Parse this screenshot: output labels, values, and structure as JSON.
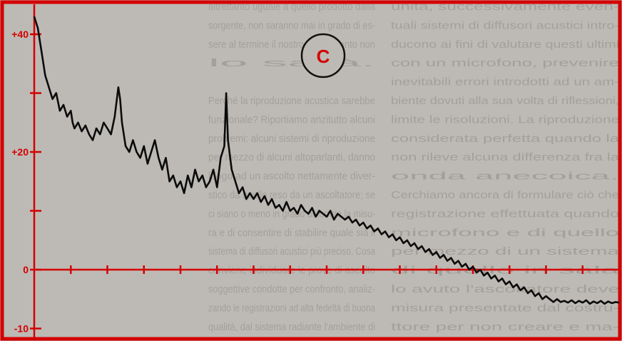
{
  "colors": {
    "paper": "#bdbab5",
    "print_text": "#8f8a84",
    "frame": "#d40000",
    "axis": "#d40000",
    "trace": "#0b0b0b",
    "panel_circle": "#111111",
    "panel_letter_color": "#d40000"
  },
  "panel_label": "C",
  "background_text": {
    "left_column": [
      "altrettanto uguale a quello prodotto dalla",
      "sorgente, non saranno mai in grado di es-",
      "sere al termine il nostro esperimento non",
      "lo sarà.",
      "",
      "Perché la riproduzione acustica sarebbe",
      "funzionale? Riportiamo anzitutto alcuni",
      "problemi: alcuni sistemi di riproduzione",
      "per mezzo di alcuni altoparlanti, danno",
      "luogo ad un ascolto nettamente diver-",
      "stico da quello reso da un ascoltatore; se",
      "ci siano o meno in grado di fornire la misu-",
      "ra e di consentire di stabilire quale sia il",
      "sistema di diffusori acustici più preciso. Cosa",
      "conviene individuare le prove di ascolto",
      "soggettive condotte per confronto, analiz-",
      "zando le registrazioni ad alta fedeltà di buona",
      "qualità, dal sistema radiante l'ambiente di"
    ],
    "right_column": [
      "unità, successivamente even-",
      "tuali sistemi di diffusori acustici intro-",
      "ducono ai fini di valutare questi ultimi",
      "con un microfono, prevenire",
      "inevitabili errori introdotti ad un am-",
      "biente dovuti alla sua volta di riflessioni,",
      "limite le risoluzioni. La riproduzione",
      "considerata perfetta quando la",
      "non rileve alcuna differenza fra la",
      "onda anecoica.",
      "Cerchiamo ancora di formulare ciò che",
      "registrazione effettuata quando",
      "microfono e di quello",
      "per mezzo di un sistema",
      "di quello in sala",
      "lo avuto l'ascoltatore deve",
      "misura presentate dal costru-",
      "ttore per non creare e ma-"
    ]
  },
  "chart_data": {
    "type": "line",
    "title": "",
    "xlabel": "",
    "ylabel": "",
    "ylim": [
      -8,
      42
    ],
    "yticks": [
      {
        "value": 40,
        "label": "+40"
      },
      {
        "value": 30,
        "label": ""
      },
      {
        "value": 20,
        "label": "+20"
      },
      {
        "value": 10,
        "label": ""
      },
      {
        "value": 0,
        "label": "0"
      },
      {
        "value": -10,
        "label": "-10"
      }
    ],
    "xticks": [
      1,
      2,
      3,
      4,
      5,
      6,
      7,
      8,
      9,
      10,
      11,
      12,
      13,
      14,
      15,
      16
    ],
    "xlim": [
      0,
      16
    ],
    "grid": false,
    "series": [
      {
        "values": [
          [
            0.0,
            43
          ],
          [
            0.1,
            41
          ],
          [
            0.2,
            37
          ],
          [
            0.3,
            33
          ],
          [
            0.4,
            31
          ],
          [
            0.5,
            29
          ],
          [
            0.6,
            30
          ],
          [
            0.7,
            27
          ],
          [
            0.8,
            28
          ],
          [
            0.9,
            26
          ],
          [
            1.0,
            27
          ],
          [
            1.05,
            25
          ],
          [
            1.1,
            24
          ],
          [
            1.2,
            25
          ],
          [
            1.3,
            23.5
          ],
          [
            1.4,
            24.5
          ],
          [
            1.5,
            23
          ],
          [
            1.6,
            22
          ],
          [
            1.7,
            24
          ],
          [
            1.8,
            23
          ],
          [
            1.9,
            25
          ],
          [
            2.0,
            24
          ],
          [
            2.1,
            23
          ],
          [
            2.2,
            26
          ],
          [
            2.3,
            31
          ],
          [
            2.35,
            29
          ],
          [
            2.4,
            25
          ],
          [
            2.5,
            21
          ],
          [
            2.6,
            20
          ],
          [
            2.7,
            22
          ],
          [
            2.8,
            20
          ],
          [
            2.9,
            19
          ],
          [
            3.0,
            21
          ],
          [
            3.1,
            18
          ],
          [
            3.2,
            20
          ],
          [
            3.3,
            22
          ],
          [
            3.4,
            19
          ],
          [
            3.5,
            17
          ],
          [
            3.6,
            19
          ],
          [
            3.7,
            15
          ],
          [
            3.8,
            16
          ],
          [
            3.9,
            14
          ],
          [
            4.0,
            15
          ],
          [
            4.1,
            13
          ],
          [
            4.2,
            16
          ],
          [
            4.3,
            14
          ],
          [
            4.4,
            17
          ],
          [
            4.5,
            15
          ],
          [
            4.6,
            16
          ],
          [
            4.7,
            14
          ],
          [
            4.8,
            15
          ],
          [
            4.9,
            17
          ],
          [
            5.0,
            14
          ],
          [
            5.1,
            19
          ],
          [
            5.2,
            21
          ],
          [
            5.25,
            30
          ],
          [
            5.3,
            22
          ],
          [
            5.4,
            17
          ],
          [
            5.5,
            15
          ],
          [
            5.6,
            13
          ],
          [
            5.7,
            14
          ],
          [
            5.8,
            12
          ],
          [
            5.9,
            13
          ],
          [
            6.0,
            12
          ],
          [
            6.1,
            13
          ],
          [
            6.2,
            11.5
          ],
          [
            6.3,
            12.5
          ],
          [
            6.4,
            11
          ],
          [
            6.5,
            12
          ],
          [
            6.6,
            10.5
          ],
          [
            6.7,
            11
          ],
          [
            6.8,
            10
          ],
          [
            6.9,
            11.5
          ],
          [
            7.0,
            10
          ],
          [
            7.1,
            10.5
          ],
          [
            7.2,
            9.5
          ],
          [
            7.3,
            11
          ],
          [
            7.4,
            10
          ],
          [
            7.5,
            9.5
          ],
          [
            7.6,
            10.5
          ],
          [
            7.7,
            9
          ],
          [
            7.8,
            10
          ],
          [
            7.9,
            9.5
          ],
          [
            8.0,
            9
          ],
          [
            8.1,
            10
          ],
          [
            8.2,
            8.5
          ],
          [
            8.3,
            9.5
          ],
          [
            8.4,
            9
          ],
          [
            8.5,
            8.5
          ],
          [
            8.6,
            9
          ],
          [
            8.7,
            8
          ],
          [
            8.8,
            8.5
          ],
          [
            8.9,
            7.5
          ],
          [
            9.0,
            8
          ],
          [
            9.1,
            7
          ],
          [
            9.2,
            7.5
          ],
          [
            9.3,
            6.5
          ],
          [
            9.4,
            7
          ],
          [
            9.5,
            6
          ],
          [
            9.6,
            6.5
          ],
          [
            9.7,
            5.5
          ],
          [
            9.8,
            6
          ],
          [
            9.9,
            5
          ],
          [
            10.0,
            5.5
          ],
          [
            10.1,
            4.5
          ],
          [
            10.2,
            5
          ],
          [
            10.3,
            4
          ],
          [
            10.4,
            4.5
          ],
          [
            10.5,
            3.5
          ],
          [
            10.6,
            4
          ],
          [
            10.7,
            3
          ],
          [
            10.8,
            3.5
          ],
          [
            10.9,
            2.5
          ],
          [
            11.0,
            3
          ],
          [
            11.1,
            2
          ],
          [
            11.2,
            2.5
          ],
          [
            11.3,
            1.5
          ],
          [
            11.4,
            2
          ],
          [
            11.5,
            1
          ],
          [
            11.6,
            1.5
          ],
          [
            11.7,
            0.5
          ],
          [
            11.8,
            1
          ],
          [
            11.9,
            0
          ],
          [
            12.0,
            0.5
          ],
          [
            12.1,
            -0.5
          ],
          [
            12.2,
            0
          ],
          [
            12.3,
            -1
          ],
          [
            12.4,
            -0.5
          ],
          [
            12.5,
            -1.5
          ],
          [
            12.6,
            -1
          ],
          [
            12.7,
            -2
          ],
          [
            12.8,
            -1.5
          ],
          [
            12.9,
            -2.5
          ],
          [
            13.0,
            -2
          ],
          [
            13.1,
            -3
          ],
          [
            13.2,
            -2.5
          ],
          [
            13.3,
            -3.5
          ],
          [
            13.4,
            -3
          ],
          [
            13.5,
            -4
          ],
          [
            13.6,
            -3.5
          ],
          [
            13.7,
            -4.5
          ],
          [
            13.8,
            -4
          ],
          [
            13.9,
            -5
          ],
          [
            14.0,
            -4.5
          ],
          [
            14.1,
            -5
          ],
          [
            14.2,
            -5.5
          ],
          [
            14.3,
            -5
          ],
          [
            14.4,
            -5.5
          ],
          [
            14.5,
            -5.3
          ],
          [
            14.6,
            -5.6
          ],
          [
            14.7,
            -5.2
          ],
          [
            14.8,
            -5.7
          ],
          [
            14.9,
            -5.3
          ],
          [
            15.0,
            -5.6
          ],
          [
            15.1,
            -5.2
          ],
          [
            15.2,
            -5.8
          ],
          [
            15.3,
            -5.4
          ],
          [
            15.4,
            -5.7
          ],
          [
            15.5,
            -5.3
          ],
          [
            15.6,
            -5.8
          ],
          [
            15.7,
            -5.4
          ],
          [
            15.8,
            -5.7
          ],
          [
            15.9,
            -5.5
          ],
          [
            16.0,
            -5.6
          ]
        ]
      }
    ]
  }
}
